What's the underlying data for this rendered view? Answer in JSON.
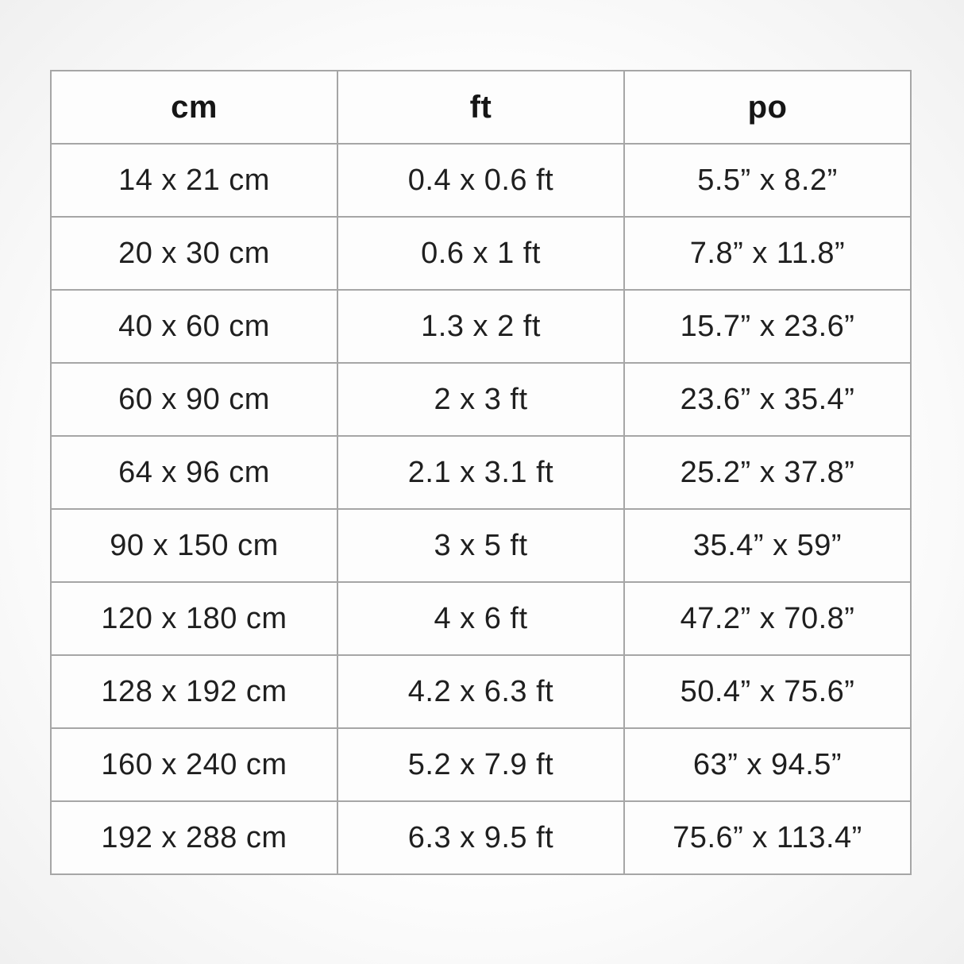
{
  "table": {
    "columns": [
      "cm",
      "ft",
      "po"
    ],
    "rows": [
      [
        "14 x 21 cm",
        "0.4 x 0.6 ft",
        "5.5” x 8.2”"
      ],
      [
        "20 x 30 cm",
        "0.6 x 1 ft",
        "7.8” x 11.8”"
      ],
      [
        "40 x 60 cm",
        "1.3 x 2 ft",
        "15.7” x 23.6”"
      ],
      [
        "60 x 90 cm",
        "2 x 3 ft",
        "23.6” x 35.4”"
      ],
      [
        "64 x 96 cm",
        "2.1 x 3.1 ft",
        "25.2” x 37.8”"
      ],
      [
        "90 x 150 cm",
        "3 x 5 ft",
        "35.4” x 59”"
      ],
      [
        "120 x 180 cm",
        "4 x 6 ft",
        "47.2” x 70.8”"
      ],
      [
        "128 x 192 cm",
        "4.2 x 6.3 ft",
        "50.4” x 75.6”"
      ],
      [
        "160 x 240 cm",
        "5.2 x 7.9 ft",
        "63” x 94.5”"
      ],
      [
        "192 x 288 cm",
        "6.3 x 9.5 ft",
        "75.6” x 113.4”"
      ]
    ]
  },
  "chart_data": {
    "type": "table",
    "title": "",
    "columns": [
      "cm",
      "ft",
      "po"
    ],
    "rows": [
      [
        "14 x 21 cm",
        "0.4 x 0.6 ft",
        "5.5” x 8.2”"
      ],
      [
        "20 x 30 cm",
        "0.6 x 1 ft",
        "7.8” x 11.8”"
      ],
      [
        "40 x 60 cm",
        "1.3 x 2 ft",
        "15.7” x 23.6”"
      ],
      [
        "60 x 90 cm",
        "2 x 3 ft",
        "23.6” x 35.4”"
      ],
      [
        "64 x 96 cm",
        "2.1 x 3.1 ft",
        "25.2” x 37.8”"
      ],
      [
        "90 x 150 cm",
        "3 x 5 ft",
        "35.4” x 59”"
      ],
      [
        "120 x 180 cm",
        "4 x 6 ft",
        "47.2” x 70.8”"
      ],
      [
        "128 x 192 cm",
        "4.2 x 6.3 ft",
        "50.4” x 75.6”"
      ],
      [
        "160 x 240 cm",
        "5.2 x 7.9 ft",
        "63” x 94.5”"
      ],
      [
        "192 x 288 cm",
        "6.3 x 9.5 ft",
        "75.6” x 113.4”"
      ]
    ]
  },
  "colors": {
    "border": "#a6a6a6",
    "text": "#1f1f1f",
    "cell_background": "#fdfdfd"
  }
}
